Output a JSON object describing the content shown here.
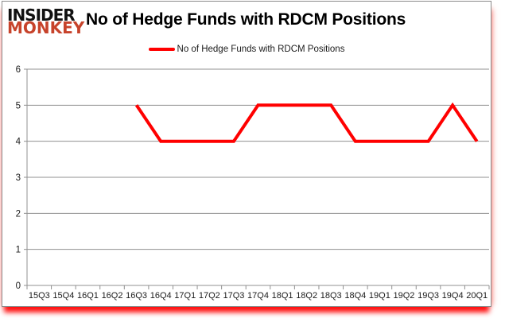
{
  "header": {
    "logo_line1": "INSIDER",
    "logo_line2": "MONKEY",
    "title": "No of Hedge Funds with RDCM Positions"
  },
  "legend": {
    "label": "No of Hedge Funds with RDCM Positions"
  },
  "colors": {
    "series_line": "#ff0000",
    "grid_line": "#909090",
    "axis_text": "#1a1a1a",
    "logo_red": "#c7432b",
    "glow_red": "#ff0000",
    "card_border": "#8c8c8c"
  },
  "chart_data": {
    "type": "line",
    "title": "No of Hedge Funds with RDCM Positions",
    "xlabel": "",
    "ylabel": "",
    "categories": [
      "15Q3",
      "15Q4",
      "16Q1",
      "16Q2",
      "16Q3",
      "16Q4",
      "17Q1",
      "17Q2",
      "17Q3",
      "17Q4",
      "18Q1",
      "18Q2",
      "18Q3",
      "18Q4",
      "19Q1",
      "19Q2",
      "19Q3",
      "19Q4",
      "20Q1"
    ],
    "series": [
      {
        "name": "No of Hedge Funds with RDCM Positions",
        "color": "#ff0000",
        "values": [
          null,
          null,
          null,
          null,
          5,
          4,
          4,
          4,
          4,
          5,
          5,
          5,
          5,
          4,
          4,
          4,
          4,
          5,
          4
        ]
      }
    ],
    "ylim": [
      0,
      6
    ],
    "ytick_step": 1,
    "grid": true,
    "legend_position": "top-center"
  }
}
